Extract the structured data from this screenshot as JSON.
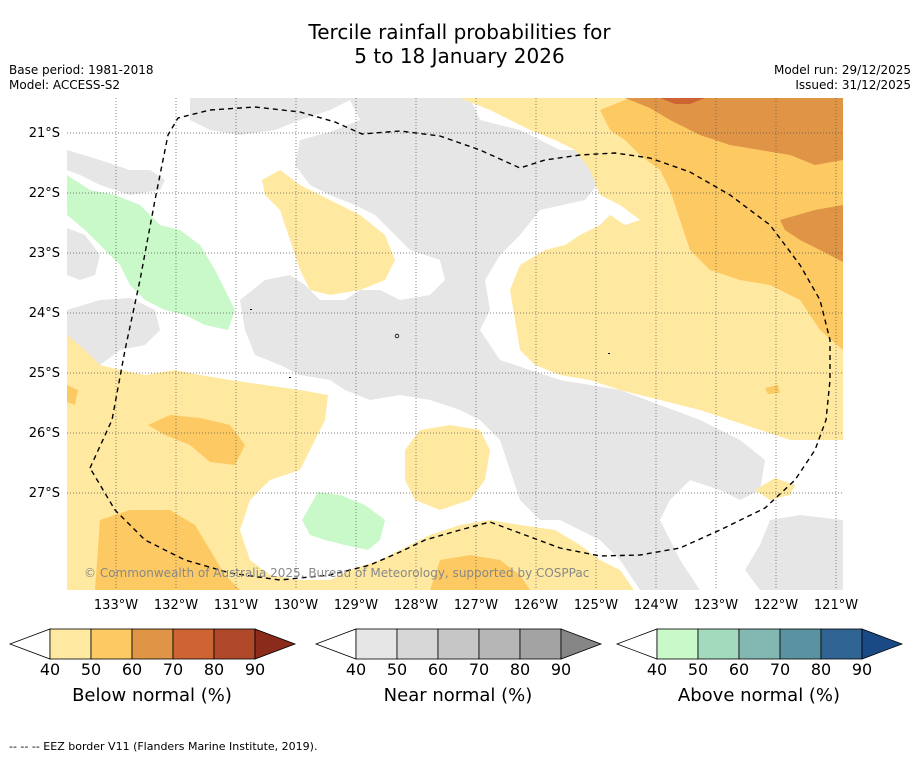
{
  "title_line1": "Tercile rainfall probabilities for",
  "title_line2": "5 to 18 January 2026",
  "base_period": "Base period: 1981-2018",
  "model": "Model: ACCESS-S2",
  "model_run": "Model run: 29/12/2025",
  "issued": "Issued: 31/12/2025",
  "copyright": "© Commonwealth of Australia 2025, Bureau of Meteorology, supported by COSPPac",
  "footer": "--  --  -- EEZ border V11 (Flanders Marine Institute, 2019).",
  "lat_labels": [
    "21°S",
    "22°S",
    "23°S",
    "24°S",
    "25°S",
    "26°S",
    "27°S"
  ],
  "lon_labels": [
    "133°W",
    "132°W",
    "131°W",
    "130°W",
    "129°W",
    "128°W",
    "127°W",
    "126°W",
    "125°W",
    "124°W",
    "123°W",
    "122°W",
    "121°W"
  ],
  "colorbars": [
    {
      "label": "Below normal (%)",
      "ticks": [
        "40",
        "50",
        "60",
        "70",
        "80",
        "90"
      ],
      "colors": [
        "#ffe9a0",
        "#fdc962",
        "#e09446",
        "#cd6431",
        "#b0492a",
        "#8a2b1c"
      ]
    },
    {
      "label": "Near normal (%)",
      "ticks": [
        "40",
        "50",
        "60",
        "70",
        "80",
        "90"
      ],
      "colors": [
        "#e6e6e6",
        "#d7d7d7",
        "#c6c6c6",
        "#b6b6b6",
        "#a3a3a3",
        "#868686"
      ]
    },
    {
      "label": "Above normal (%)",
      "ticks": [
        "40",
        "50",
        "60",
        "70",
        "80",
        "90"
      ],
      "colors": [
        "#c9f8c9",
        "#a3d9bc",
        "#83b7b1",
        "#5a92a1",
        "#306593",
        "#1a4a86"
      ]
    }
  ]
}
